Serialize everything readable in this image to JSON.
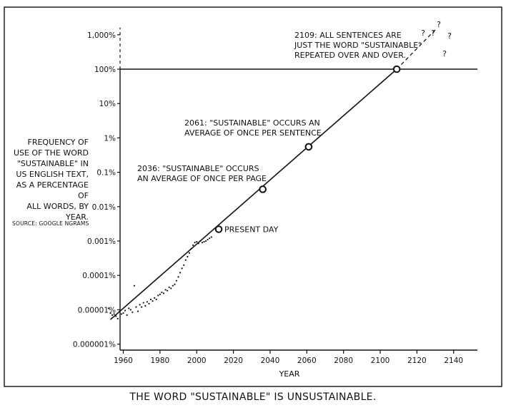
{
  "caption": "THE WORD \"SUSTAINABLE\" IS UNSUSTAINABLE.",
  "y_description": [
    "FREQUENCY OF",
    "USE OF THE WORD",
    "\"SUSTAINABLE\" IN",
    "US ENGLISH TEXT,",
    "AS A PERCENTAGE OF",
    "ALL WORDS, BY YEAR."
  ],
  "source": "SOURCE: GOOGLE NGRAMS",
  "chart_data": {
    "type": "scatter",
    "title": "",
    "xlabel": "YEAR",
    "ylabel": "",
    "y_scale": "log",
    "xlim": [
      1950,
      2145
    ],
    "ylim": [
      8e-07,
      1800
    ],
    "x_ticks": [
      1960,
      1980,
      2000,
      2020,
      2040,
      2060,
      2080,
      2100,
      2120,
      2140
    ],
    "x_tick_labels": [
      "1960",
      "1980",
      "2000",
      "2020",
      "2040",
      "2060",
      "2080",
      "2100",
      "2120",
      "2140"
    ],
    "y_ticks": [
      1e-06,
      1e-05,
      0.0001,
      0.001,
      0.01,
      0.1,
      1,
      10,
      100,
      1000
    ],
    "y_tick_labels": [
      "0.000001%",
      "0.00001%",
      "0.0001%",
      "0.001%",
      "0.01%",
      "0.1%",
      "1%",
      "10%",
      "100%",
      "1,000%"
    ],
    "series": [
      {
        "kind": "points",
        "points": [
          [
            1952,
            1.1e-05
          ],
          [
            1953,
            8e-06
          ],
          [
            1954,
            7e-06
          ],
          [
            1955,
            7.5e-06
          ],
          [
            1956,
            6.5e-06
          ],
          [
            1957,
            5.5e-06
          ],
          [
            1958,
            9e-06
          ],
          [
            1959,
            7.5e-06
          ],
          [
            1960,
            8e-06
          ],
          [
            1961,
            9.5e-06
          ],
          [
            1962,
            7e-06
          ],
          [
            1963,
            1.1e-05
          ],
          [
            1964,
            1e-05
          ],
          [
            1965,
            8.5e-06
          ],
          [
            1966,
            5e-05
          ],
          [
            1967,
            1.2e-05
          ],
          [
            1968,
            9e-06
          ],
          [
            1969,
            1.4e-05
          ],
          [
            1970,
            1.2e-05
          ],
          [
            1971,
            1.6e-05
          ],
          [
            1972,
            1.3e-05
          ],
          [
            1973,
            1.7e-05
          ],
          [
            1974,
            1.5e-05
          ],
          [
            1975,
            2e-05
          ],
          [
            1976,
            1.8e-05
          ],
          [
            1977,
            2.2e-05
          ],
          [
            1978,
            2e-05
          ],
          [
            1979,
            2.6e-05
          ],
          [
            1980,
            2.8e-05
          ],
          [
            1981,
            3.2e-05
          ],
          [
            1982,
            3e-05
          ],
          [
            1983,
            3.8e-05
          ],
          [
            1984,
            3.6e-05
          ],
          [
            1985,
            4.5e-05
          ],
          [
            1986,
            4.2e-05
          ],
          [
            1987,
            5e-05
          ],
          [
            1988,
            5.5e-05
          ],
          [
            1989,
            7e-05
          ],
          [
            1990,
            9e-05
          ],
          [
            1991,
            0.00012
          ],
          [
            1992,
            0.00016
          ],
          [
            1993,
            0.0002
          ],
          [
            1994,
            0.00028
          ],
          [
            1995,
            0.00035
          ],
          [
            1996,
            0.00045
          ],
          [
            1997,
            0.0006
          ],
          [
            1998,
            0.00075
          ],
          [
            1999,
            0.0009
          ],
          [
            2000,
            0.00095
          ],
          [
            2001,
            0.00085
          ],
          [
            2002,
            0.001
          ],
          [
            2003,
            0.0009
          ],
          [
            2004,
            0.00095
          ],
          [
            2005,
            0.001
          ],
          [
            2006,
            0.0011
          ],
          [
            2007,
            0.0012
          ],
          [
            2008,
            0.0013
          ]
        ]
      },
      {
        "kind": "trend_line",
        "points": [
          [
            1953,
            5.2e-06
          ],
          [
            2109,
            100
          ]
        ]
      },
      {
        "kind": "extrapolation",
        "points": [
          [
            2109,
            100
          ],
          [
            2130,
            1400
          ]
        ]
      }
    ],
    "reference_lines": [
      {
        "orientation": "horizontal",
        "y": 100
      },
      {
        "orientation": "vertical",
        "x": 1950,
        "dashed_above": 100
      }
    ],
    "markers": [
      {
        "x": 2012,
        "y": 0.0022,
        "label": "PRESENT DAY"
      },
      {
        "x": 2036,
        "y": 0.032,
        "label_lines": [
          "2036: \"SUSTAINABLE\" OCCURS",
          "AN AVERAGE OF ONCE PER PAGE"
        ]
      },
      {
        "x": 2061,
        "y": 0.55,
        "label_lines": [
          "2061: \"SUSTAINABLE\" OCCURS AN",
          "AVERAGE OF ONCE PER SENTENCE"
        ]
      },
      {
        "x": 2109,
        "y": 100,
        "label_lines": [
          "2109: ALL SENTENCES ARE",
          "JUST THE WORD \"SUSTAINABLE\"",
          "REPEATED OVER AND OVER."
        ]
      }
    ],
    "question_marks": [
      "?",
      "?",
      "?",
      "?",
      "?"
    ]
  }
}
